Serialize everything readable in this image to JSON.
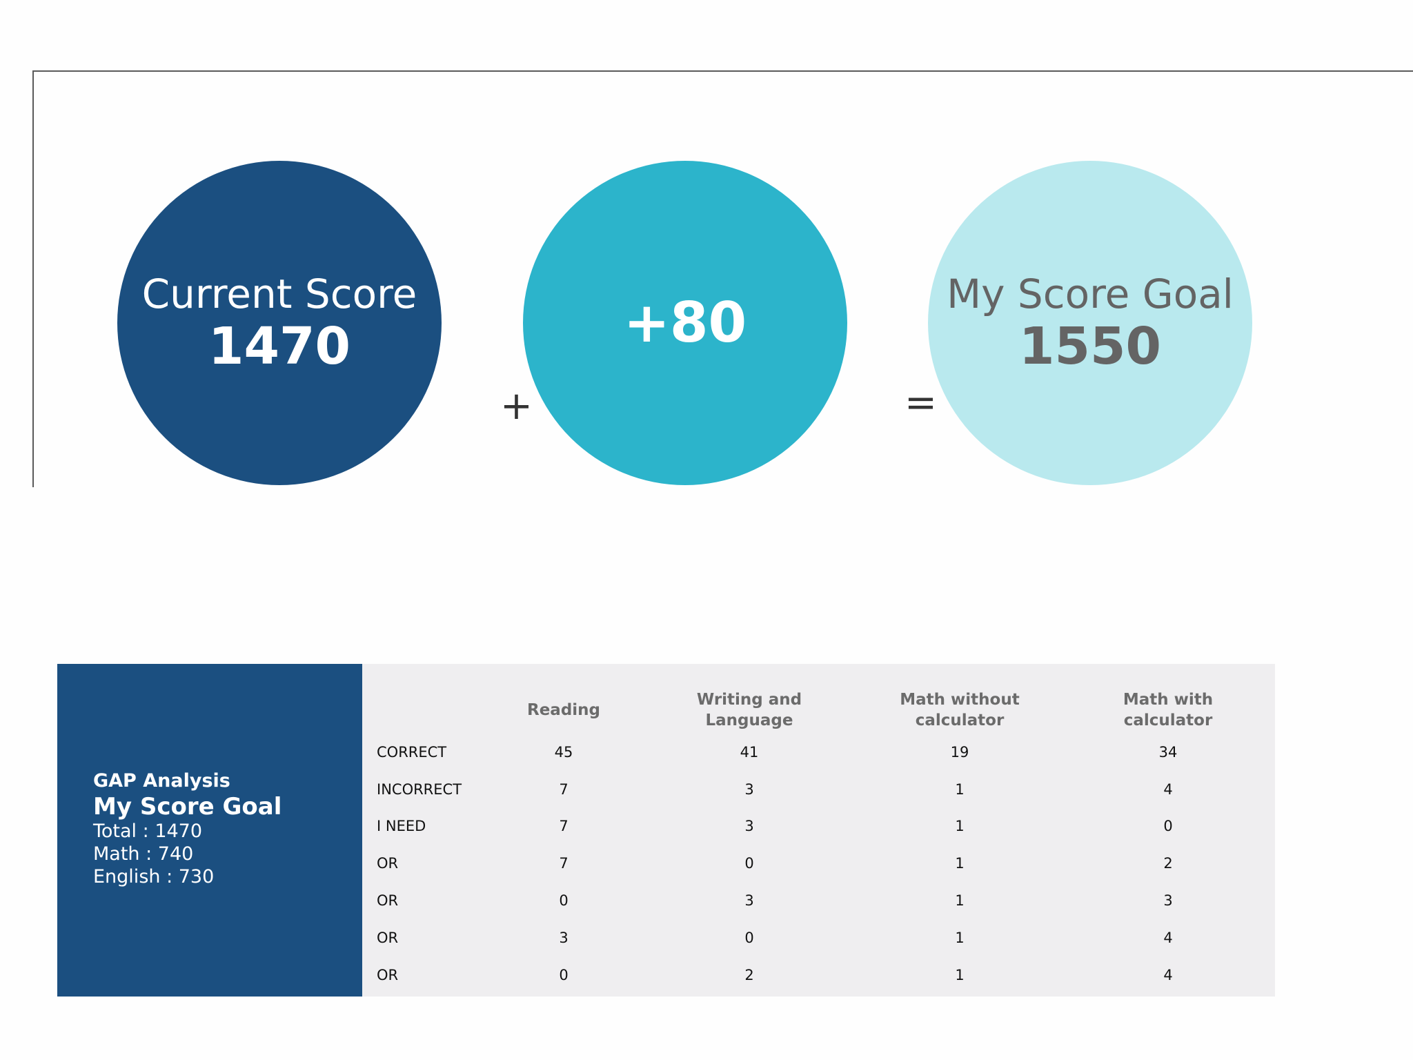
{
  "score": {
    "current_label": "Current Score",
    "current_value": "1470",
    "plus_symbol": "+",
    "increase_value": "+80",
    "equals_symbol": "=",
    "goal_label": "My Score Goal",
    "goal_value": "1550",
    "colors": {
      "current": "#1b4f80",
      "increase": "#2cb4cb",
      "goal": "#b9e9ee"
    }
  },
  "gap": {
    "heading": "GAP Analysis",
    "title": "My Score Goal",
    "total": "Total : 1470",
    "math": "Math : 740",
    "english": "English : 730"
  },
  "table": {
    "columns": [
      "Reading",
      "Writing and\nLanguage",
      "Math without\ncalculator",
      "Math with\ncalculator"
    ],
    "rows": [
      {
        "label": "CORRECT",
        "values": [
          "45",
          "41",
          "19",
          "34"
        ]
      },
      {
        "label": "INCORRECT",
        "values": [
          "7",
          "3",
          "1",
          "4"
        ]
      },
      {
        "label": "I NEED",
        "values": [
          "7",
          "3",
          "1",
          "0"
        ]
      },
      {
        "label": "OR",
        "values": [
          "7",
          "0",
          "1",
          "2"
        ]
      },
      {
        "label": "OR",
        "values": [
          "0",
          "3",
          "1",
          "3"
        ]
      },
      {
        "label": "OR",
        "values": [
          "3",
          "0",
          "1",
          "4"
        ]
      },
      {
        "label": "OR",
        "values": [
          "0",
          "2",
          "1",
          "4"
        ]
      }
    ]
  }
}
